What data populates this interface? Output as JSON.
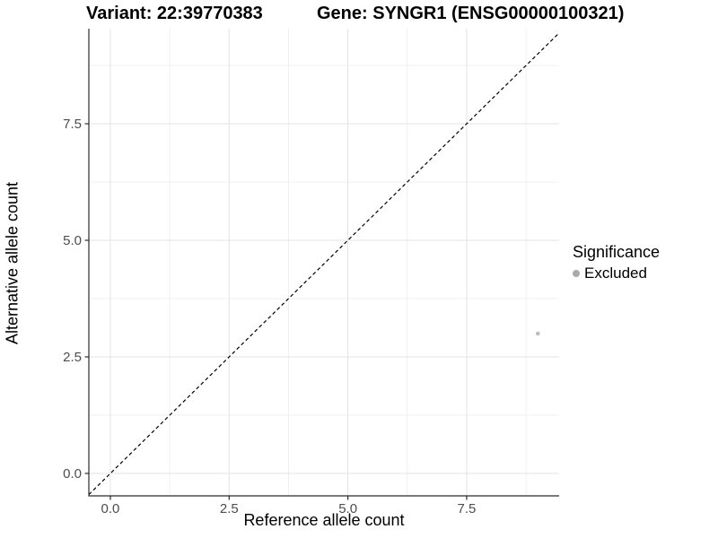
{
  "titles": {
    "variant": "Variant: 22:39770383",
    "gene": "Gene: SYNGR1 (ENSG00000100321)"
  },
  "axes": {
    "x_label": "Reference allele count",
    "y_label": "Alternative allele count"
  },
  "legend": {
    "title": "Significance",
    "items": [
      {
        "label": "Excluded",
        "color": "#aaaaaa"
      }
    ]
  },
  "colors": {
    "grid_major": "#e3e3e3",
    "grid_minor": "#f0f0f0",
    "axis_line": "#2b2b2b",
    "tick_label": "#4d4d4d",
    "point": "#bebebe",
    "reference_line": "#000000",
    "background": "#ffffff"
  },
  "chart_data": {
    "type": "scatter",
    "title": "Variant: 22:39770383 — Gene: SYNGR1 (ENSG00000100321)",
    "xlabel": "Reference allele count",
    "ylabel": "Alternative allele count",
    "xlim": [
      -0.453,
      9.447
    ],
    "ylim": [
      -0.481,
      9.539
    ],
    "x_ticks": [
      0,
      2.5,
      5,
      7.5
    ],
    "x_tick_labels": [
      "0.0",
      "2.5",
      "5.0",
      "7.5"
    ],
    "y_ticks": [
      0,
      2.5,
      5,
      7.5
    ],
    "y_tick_labels": [
      "0.0",
      "2.5",
      "5.0",
      "7.5"
    ],
    "x_minor_ticks": [
      1.25,
      3.75,
      6.25,
      8.75
    ],
    "y_minor_ticks": [
      1.25,
      3.75,
      6.25,
      8.75
    ],
    "grid": true,
    "legend_position": "right",
    "reference_line": {
      "type": "abline",
      "slope": 1,
      "intercept": 0,
      "style": "dashed"
    },
    "series": [
      {
        "name": "Excluded",
        "color": "#bebebe",
        "points": [
          {
            "x": 9,
            "y": 3
          }
        ]
      }
    ]
  }
}
